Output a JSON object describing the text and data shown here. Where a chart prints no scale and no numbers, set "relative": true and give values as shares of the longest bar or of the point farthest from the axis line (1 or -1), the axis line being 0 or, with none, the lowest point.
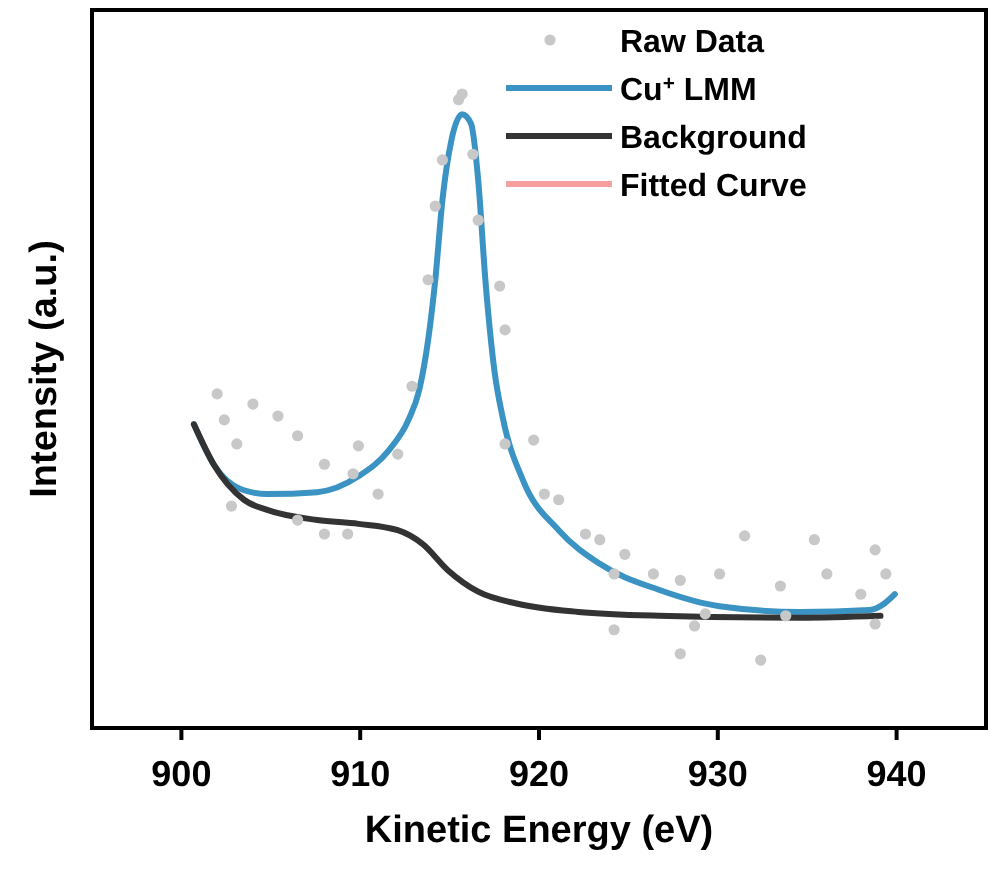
{
  "chart_data": {
    "type": "line",
    "relative": true,
    "xlabel": "Kinetic Energy (eV)",
    "ylabel": "Intensity (a.u.)",
    "xlim": [
      895,
      945
    ],
    "xticks": [
      900,
      910,
      920,
      930,
      940
    ],
    "legend": "top right",
    "tick_labels": "x",
    "series": [
      {
        "name": "Raw Data",
        "type": "scatter",
        "marker": "circle",
        "color": "#c8c8c8",
        "x": [
          902.0,
          904.0,
          905.4,
          902.4,
          903.1,
          906.5,
          908.0,
          909.9,
          909.6,
          912.1,
          912.9,
          902.8,
          906.5,
          908.0,
          909.3,
          911.0,
          914.6,
          913.8,
          914.2,
          915.5,
          915.7,
          916.3,
          916.6,
          917.8,
          918.1,
          918.1,
          919.7,
          920.3,
          921.1,
          922.6,
          923.4,
          924.8,
          924.2,
          926.4,
          927.9,
          924.2,
          927.9,
          932.4,
          931.5,
          935.4,
          938.8,
          930.1,
          933.5,
          936.1,
          939.4,
          938.0,
          929.3,
          933.8,
          938.8,
          928.7
        ],
        "values": [
          0.527,
          0.511,
          0.492,
          0.486,
          0.448,
          0.461,
          0.416,
          0.445,
          0.401,
          0.432,
          0.539,
          0.35,
          0.328,
          0.306,
          0.306,
          0.369,
          0.896,
          0.707,
          0.823,
          0.991,
          1,
          0.905,
          0.801,
          0.697,
          0.628,
          0.448,
          0.454,
          0.369,
          0.36,
          0.306,
          0.297,
          0.274,
          0.243,
          0.243,
          0.233,
          0.155,
          0.117,
          0.107,
          0.303,
          0.297,
          0.281,
          0.243,
          0.224,
          0.243,
          0.243,
          0.211,
          0.18,
          0.177,
          0.164,
          0.161
        ]
      },
      {
        "name": "Cu$^{+}$ LMM",
        "color": "#3a93c3",
        "x": [
          900.7,
          901.8,
          903.5,
          904.8,
          907.6,
          909.9,
          911.6,
          912.7,
          913.3,
          913.8,
          914.2,
          914.6,
          915.1,
          915.7,
          916.2,
          916.6,
          917.0,
          917.5,
          918.0,
          919.1,
          921.1,
          923.4,
          926.7,
          930.1,
          934.6,
          938.5,
          939.3,
          939.9
        ],
        "values": [
          0.479,
          0.416,
          0.375,
          0.369,
          0.372,
          0.397,
          0.438,
          0.486,
          0.533,
          0.612,
          0.707,
          0.833,
          0.927,
          0.968,
          0.953,
          0.864,
          0.707,
          0.565,
          0.486,
          0.391,
          0.312,
          0.259,
          0.218,
          0.192,
          0.183,
          0.186,
          0.196,
          0.211
        ]
      },
      {
        "name": "Background",
        "color": "#333333",
        "x": [
          900.7,
          901.8,
          903.5,
          904.8,
          907.6,
          909.9,
          912.1,
          913.5,
          914.9,
          916.6,
          918.8,
          922.2,
          926.7,
          934.6,
          939.1
        ],
        "values": [
          0.479,
          0.416,
          0.36,
          0.344,
          0.328,
          0.322,
          0.312,
          0.29,
          0.249,
          0.215,
          0.196,
          0.183,
          0.177,
          0.174,
          0.177
        ]
      },
      {
        "name": "Fitted Curve",
        "color": "#f4a0a0"
      }
    ]
  }
}
